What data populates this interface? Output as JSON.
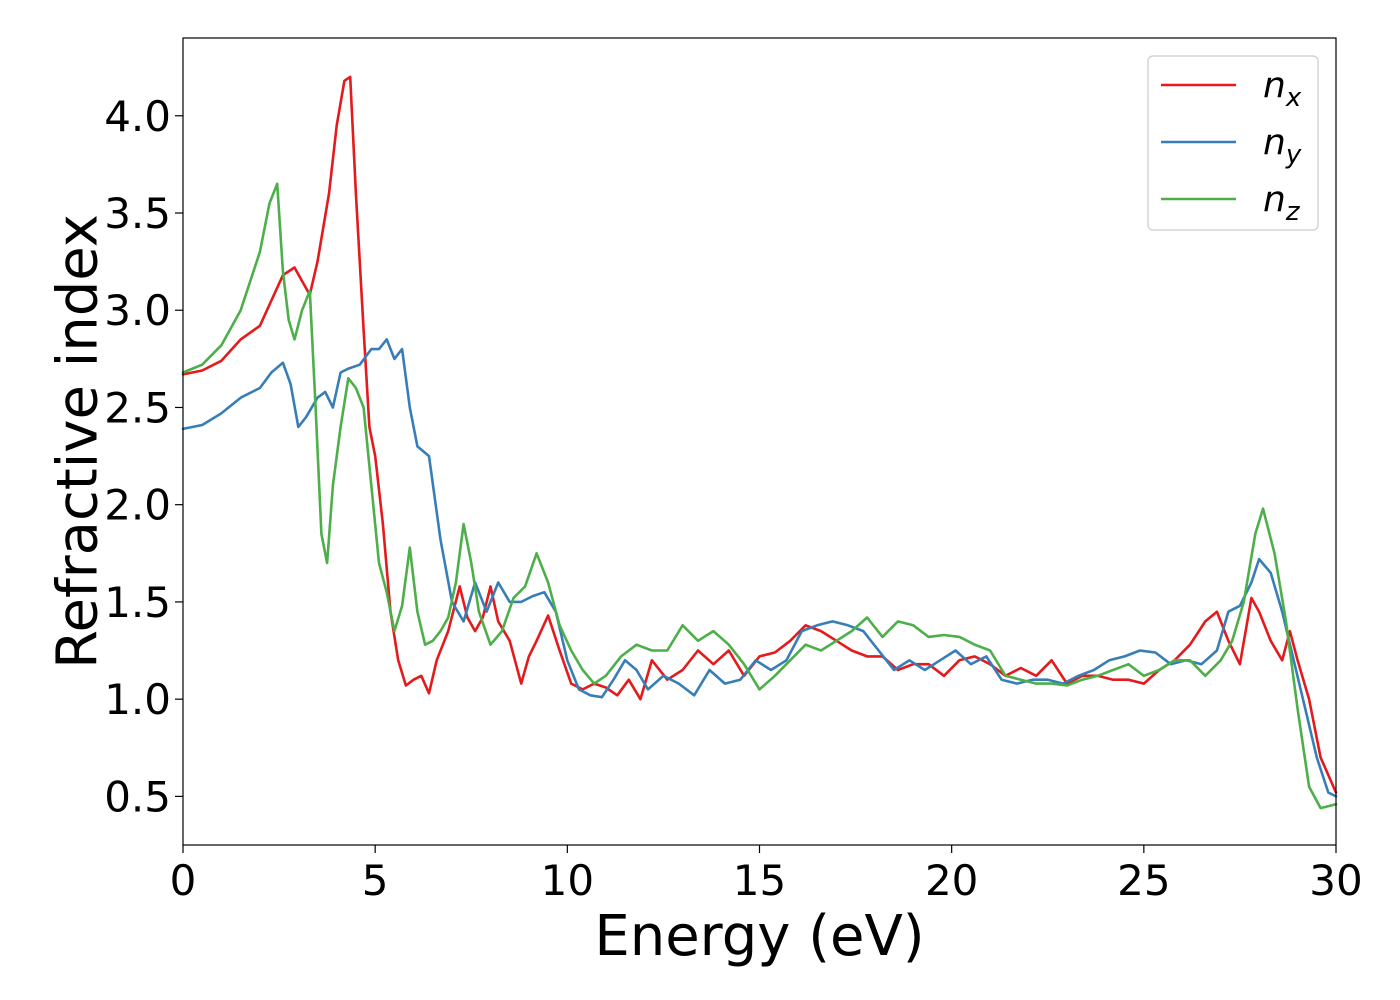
{
  "chart_data": {
    "type": "line",
    "title": "",
    "xlabel": "Energy (eV)",
    "ylabel": "Refractive index",
    "xlim": [
      0,
      30
    ],
    "ylim": [
      0.25,
      4.4
    ],
    "xticks": [
      0,
      5,
      10,
      15,
      20,
      25,
      30
    ],
    "xtick_labels": [
      "0",
      "5",
      "10",
      "15",
      "20",
      "25",
      "30"
    ],
    "yticks": [
      0.5,
      1.0,
      1.5,
      2.0,
      2.5,
      3.0,
      3.5,
      4.0
    ],
    "ytick_labels": [
      "0.5",
      "1.0",
      "1.5",
      "2.0",
      "2.5",
      "3.0",
      "3.5",
      "4.0"
    ],
    "grid": false,
    "legend_position": "top-right",
    "series": [
      {
        "name": "n_x",
        "label_main": "n",
        "label_sub": "x",
        "color": "#e41a1c",
        "x": [
          0,
          0.5,
          1.0,
          1.5,
          2.0,
          2.3,
          2.6,
          2.9,
          3.1,
          3.3,
          3.5,
          3.8,
          4.0,
          4.2,
          4.35,
          4.5,
          4.7,
          4.85,
          5.0,
          5.2,
          5.4,
          5.6,
          5.8,
          6.0,
          6.2,
          6.4,
          6.6,
          6.9,
          7.2,
          7.4,
          7.6,
          7.8,
          8.0,
          8.2,
          8.5,
          8.8,
          9.0,
          9.2,
          9.5,
          9.8,
          10.1,
          10.4,
          10.7,
          11.0,
          11.3,
          11.6,
          11.9,
          12.2,
          12.6,
          13.0,
          13.4,
          13.8,
          14.2,
          14.6,
          15.0,
          15.4,
          15.8,
          16.2,
          16.6,
          17.0,
          17.4,
          17.8,
          18.2,
          18.6,
          19.0,
          19.4,
          19.8,
          20.2,
          20.6,
          21.0,
          21.4,
          21.8,
          22.2,
          22.6,
          23.0,
          23.4,
          23.8,
          24.2,
          24.6,
          25.0,
          25.4,
          25.8,
          26.2,
          26.6,
          26.9,
          27.2,
          27.5,
          27.8,
          28.0,
          28.3,
          28.6,
          28.8,
          29.0,
          29.3,
          29.6,
          30.0
        ],
        "y": [
          2.67,
          2.69,
          2.74,
          2.85,
          2.92,
          3.05,
          3.18,
          3.22,
          3.15,
          3.08,
          3.25,
          3.6,
          3.95,
          4.18,
          4.2,
          3.6,
          2.9,
          2.4,
          2.25,
          1.9,
          1.45,
          1.2,
          1.07,
          1.1,
          1.12,
          1.03,
          1.2,
          1.35,
          1.58,
          1.42,
          1.35,
          1.42,
          1.58,
          1.4,
          1.3,
          1.08,
          1.22,
          1.3,
          1.43,
          1.25,
          1.08,
          1.05,
          1.08,
          1.06,
          1.02,
          1.1,
          1.0,
          1.2,
          1.1,
          1.15,
          1.25,
          1.18,
          1.25,
          1.12,
          1.22,
          1.24,
          1.3,
          1.38,
          1.35,
          1.3,
          1.25,
          1.22,
          1.22,
          1.15,
          1.18,
          1.18,
          1.12,
          1.2,
          1.22,
          1.18,
          1.12,
          1.16,
          1.12,
          1.2,
          1.08,
          1.12,
          1.12,
          1.1,
          1.1,
          1.08,
          1.15,
          1.2,
          1.28,
          1.4,
          1.45,
          1.3,
          1.18,
          1.52,
          1.45,
          1.3,
          1.2,
          1.35,
          1.2,
          1.0,
          0.7,
          0.52
        ]
      },
      {
        "name": "n_y",
        "label_main": "n",
        "label_sub": "y",
        "color": "#377eb8",
        "x": [
          0,
          0.5,
          1.0,
          1.5,
          2.0,
          2.3,
          2.6,
          2.8,
          3.0,
          3.2,
          3.5,
          3.7,
          3.9,
          4.1,
          4.3,
          4.6,
          4.9,
          5.1,
          5.3,
          5.5,
          5.7,
          5.9,
          6.1,
          6.4,
          6.7,
          7.0,
          7.3,
          7.6,
          7.9,
          8.2,
          8.5,
          8.8,
          9.1,
          9.4,
          9.7,
          10.0,
          10.3,
          10.6,
          10.9,
          11.2,
          11.5,
          11.8,
          12.1,
          12.5,
          12.9,
          13.3,
          13.7,
          14.1,
          14.5,
          14.9,
          15.3,
          15.7,
          16.1,
          16.5,
          16.9,
          17.3,
          17.7,
          18.1,
          18.5,
          18.9,
          19.3,
          19.7,
          20.1,
          20.5,
          20.9,
          21.3,
          21.7,
          22.1,
          22.5,
          22.9,
          23.3,
          23.7,
          24.1,
          24.5,
          24.9,
          25.3,
          25.7,
          26.1,
          26.5,
          26.9,
          27.2,
          27.5,
          27.8,
          28.0,
          28.3,
          28.6,
          28.9,
          29.2,
          29.5,
          29.8,
          30.0
        ],
        "y": [
          2.39,
          2.41,
          2.47,
          2.55,
          2.6,
          2.68,
          2.73,
          2.62,
          2.4,
          2.45,
          2.55,
          2.58,
          2.5,
          2.68,
          2.7,
          2.72,
          2.8,
          2.8,
          2.85,
          2.75,
          2.8,
          2.5,
          2.3,
          2.25,
          1.82,
          1.5,
          1.4,
          1.6,
          1.45,
          1.6,
          1.5,
          1.5,
          1.53,
          1.55,
          1.45,
          1.2,
          1.05,
          1.02,
          1.01,
          1.1,
          1.2,
          1.15,
          1.05,
          1.12,
          1.08,
          1.02,
          1.15,
          1.08,
          1.1,
          1.2,
          1.15,
          1.2,
          1.35,
          1.38,
          1.4,
          1.38,
          1.35,
          1.25,
          1.15,
          1.2,
          1.15,
          1.2,
          1.25,
          1.18,
          1.22,
          1.1,
          1.08,
          1.1,
          1.1,
          1.08,
          1.12,
          1.15,
          1.2,
          1.22,
          1.25,
          1.24,
          1.18,
          1.2,
          1.18,
          1.25,
          1.45,
          1.48,
          1.6,
          1.72,
          1.65,
          1.45,
          1.2,
          0.95,
          0.7,
          0.52,
          0.5
        ]
      },
      {
        "name": "n_z",
        "label_main": "n",
        "label_sub": "z",
        "color": "#4daf4a",
        "x": [
          0,
          0.5,
          1.0,
          1.5,
          2.0,
          2.25,
          2.45,
          2.6,
          2.75,
          2.9,
          3.1,
          3.3,
          3.45,
          3.6,
          3.75,
          3.9,
          4.1,
          4.3,
          4.5,
          4.7,
          4.9,
          5.1,
          5.3,
          5.5,
          5.7,
          5.9,
          6.1,
          6.3,
          6.5,
          6.7,
          6.9,
          7.1,
          7.3,
          7.5,
          7.7,
          8.0,
          8.3,
          8.6,
          8.9,
          9.2,
          9.5,
          9.8,
          10.1,
          10.4,
          10.7,
          11.0,
          11.4,
          11.8,
          12.2,
          12.6,
          13.0,
          13.4,
          13.8,
          14.2,
          14.6,
          15.0,
          15.4,
          15.8,
          16.2,
          16.6,
          17.0,
          17.4,
          17.8,
          18.2,
          18.6,
          19.0,
          19.4,
          19.8,
          20.2,
          20.6,
          21.0,
          21.4,
          21.8,
          22.2,
          22.6,
          23.0,
          23.4,
          23.8,
          24.2,
          24.6,
          25.0,
          25.4,
          25.8,
          26.2,
          26.6,
          27.0,
          27.3,
          27.6,
          27.9,
          28.1,
          28.4,
          28.7,
          29.0,
          29.3,
          29.6,
          30.0
        ],
        "y": [
          2.68,
          2.72,
          2.82,
          3.0,
          3.3,
          3.55,
          3.65,
          3.2,
          2.95,
          2.85,
          3.0,
          3.1,
          2.5,
          1.85,
          1.7,
          2.1,
          2.4,
          2.65,
          2.6,
          2.5,
          2.1,
          1.7,
          1.55,
          1.35,
          1.48,
          1.78,
          1.45,
          1.28,
          1.3,
          1.35,
          1.42,
          1.6,
          1.9,
          1.7,
          1.45,
          1.28,
          1.35,
          1.52,
          1.58,
          1.75,
          1.6,
          1.38,
          1.25,
          1.15,
          1.08,
          1.12,
          1.22,
          1.28,
          1.25,
          1.25,
          1.38,
          1.3,
          1.35,
          1.28,
          1.18,
          1.05,
          1.12,
          1.2,
          1.28,
          1.25,
          1.3,
          1.35,
          1.42,
          1.32,
          1.4,
          1.38,
          1.32,
          1.33,
          1.32,
          1.28,
          1.25,
          1.12,
          1.1,
          1.08,
          1.08,
          1.07,
          1.1,
          1.12,
          1.15,
          1.18,
          1.12,
          1.15,
          1.2,
          1.2,
          1.12,
          1.2,
          1.3,
          1.5,
          1.85,
          1.98,
          1.75,
          1.4,
          0.95,
          0.55,
          0.44,
          0.46
        ]
      }
    ]
  }
}
